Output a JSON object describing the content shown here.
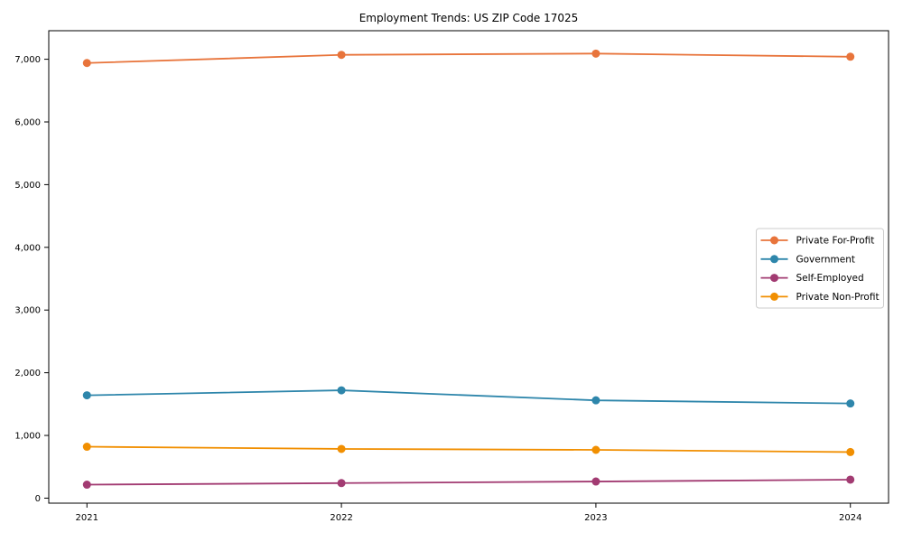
{
  "chart_data": {
    "type": "line",
    "title": "Employment Trends: US ZIP Code 17025",
    "x": [
      2021,
      2022,
      2023,
      2024
    ],
    "categories": [
      "2021",
      "2022",
      "2023",
      "2024"
    ],
    "series": [
      {
        "name": "Private For-Profit",
        "color": "#e8743b",
        "values": [
          6940,
          7070,
          7090,
          7040
        ]
      },
      {
        "name": "Government",
        "color": "#2e86ab",
        "values": [
          1640,
          1720,
          1560,
          1510
        ]
      },
      {
        "name": "Self-Employed",
        "color": "#a23b72",
        "values": [
          215,
          240,
          265,
          295
        ]
      },
      {
        "name": "Private Non-Profit",
        "color": "#f18f01",
        "values": [
          820,
          785,
          770,
          735
        ]
      }
    ],
    "xlabel": "",
    "ylabel": "",
    "xlim": [
      2020.85,
      2024.15
    ],
    "ylim": [
      -80,
      7455
    ],
    "yticks": [
      0,
      1000,
      2000,
      3000,
      4000,
      5000,
      6000,
      7000
    ],
    "ytick_labels": [
      "0",
      "1,000",
      "2,000",
      "3,000",
      "4,000",
      "5,000",
      "6,000",
      "7,000"
    ],
    "grid": false,
    "legend_position": "center right",
    "marker": "circle",
    "axis_color": "#000000",
    "legend_border_color": "#cccccc",
    "background_color": "#ffffff"
  }
}
